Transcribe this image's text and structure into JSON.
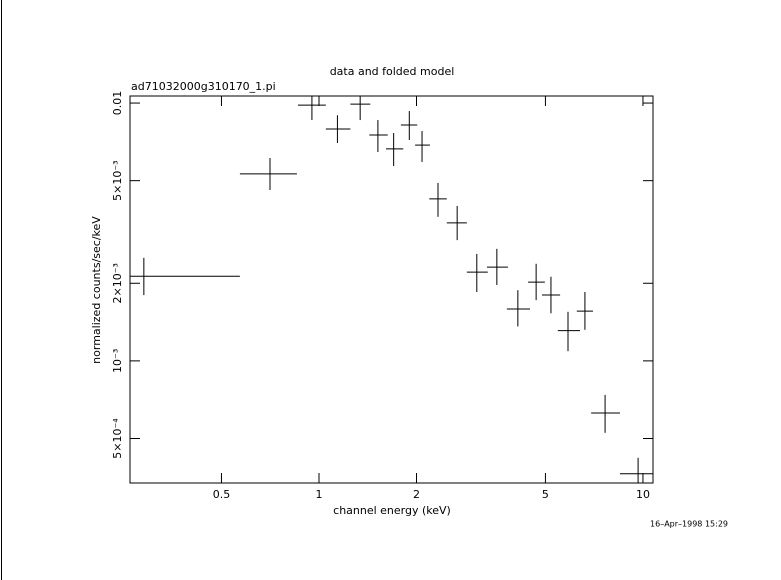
{
  "chart_data": {
    "type": "scatter",
    "title": "data and folded model",
    "subtitle": "ad71032000g310170_1.pi",
    "x_label": "channel energy (keV)",
    "y_label": "normalized counts/sec/keV",
    "timestamp": "16–Apr–1998 15:29",
    "x_log": true,
    "y_log": true,
    "color": "#000000",
    "xlim": [
      0.261,
      10.74
    ],
    "ylim": [
      0.000336,
      0.01065
    ],
    "xticks": [
      0.5,
      1,
      2,
      5,
      10
    ],
    "yticks": [
      {
        "value": 0.01,
        "label": "0.01"
      },
      {
        "value": 0.005,
        "label": "5×10⁻³"
      },
      {
        "value": 0.002,
        "label": "2×10⁻³"
      },
      {
        "value": 0.001,
        "label": "10⁻³"
      },
      {
        "value": 0.0005,
        "label": "5×10⁻⁴"
      }
    ],
    "x": [
      0.288,
      0.706,
      0.951,
      1.14,
      1.34,
      1.52,
      1.7,
      1.9,
      2.08,
      2.33,
      2.67,
      3.07,
      3.54,
      4.11,
      4.68,
      5.2,
      5.87,
      6.62,
      7.64,
      9.66
    ],
    "values": [
      0.00213,
      0.00531,
      0.00982,
      0.00793,
      0.0099,
      0.00752,
      0.00664,
      0.00822,
      0.00687,
      0.00425,
      0.00343,
      0.00221,
      0.00231,
      0.00159,
      0.00202,
      0.0018,
      0.00131,
      0.00156,
      0.000628,
      0.000365
    ],
    "x_low": [
      0.261,
      0.57,
      0.861,
      1.05,
      1.25,
      1.43,
      1.61,
      1.79,
      1.98,
      2.19,
      2.48,
      2.86,
      3.3,
      3.8,
      4.42,
      4.88,
      5.46,
      6.25,
      6.92,
      8.49
    ],
    "x_high": [
      0.57,
      0.855,
      1.05,
      1.25,
      1.44,
      1.63,
      1.82,
      2.01,
      2.2,
      2.48,
      2.86,
      3.32,
      3.83,
      4.48,
      4.98,
      5.55,
      6.39,
      7.01,
      8.49,
      10.7
    ],
    "y_low": [
      0.0018,
      0.0046,
      0.00859,
      0.007,
      0.00859,
      0.00646,
      0.0057,
      0.00719,
      0.00591,
      0.00362,
      0.00294,
      0.00185,
      0.00197,
      0.00136,
      0.00172,
      0.00153,
      0.00109,
      0.00132,
      0.000526,
      0.000336
    ],
    "y_high": [
      0.00251,
      0.00612,
      0.0106,
      0.00897,
      0.0106,
      0.00859,
      0.00765,
      0.00931,
      0.00779,
      0.0049,
      0.00399,
      0.0026,
      0.00272,
      0.00188,
      0.00238,
      0.00212,
      0.00155,
      0.00185,
      0.000738,
      0.000421
    ]
  }
}
